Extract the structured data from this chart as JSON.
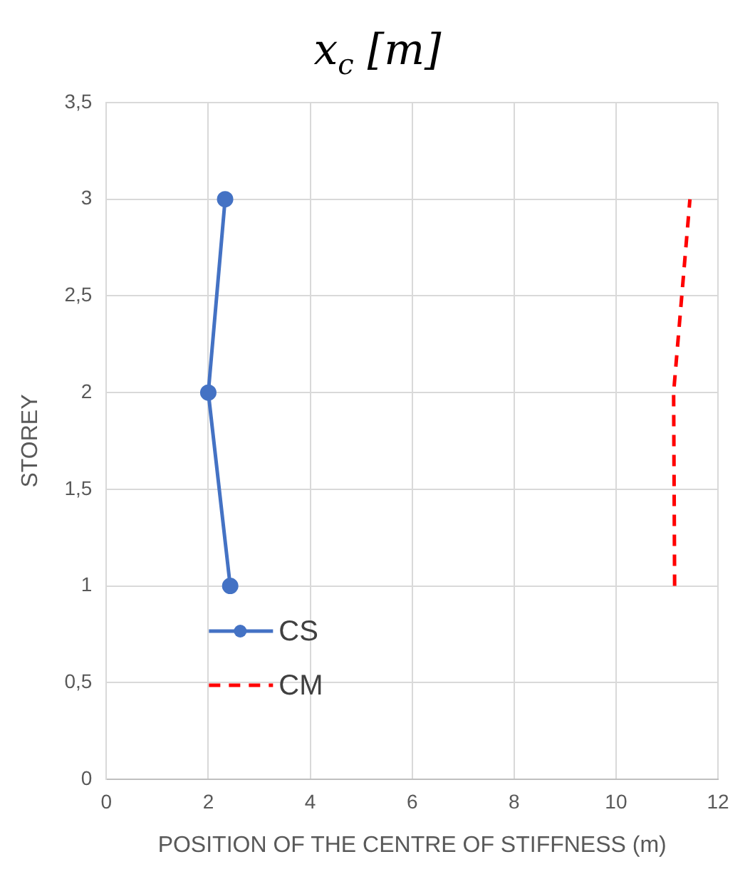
{
  "chart_data": {
    "type": "line",
    "title": "x$_{c}$ [m]",
    "xlabel": "POSITION OF THE CENTRE OF STIFFNESS (m)",
    "ylabel": "STOREY",
    "series": [
      {
        "name": "CS",
        "color": "#4472c4",
        "x": [
          2.43,
          2.0,
          2.33
        ],
        "values": [
          1,
          2,
          3
        ],
        "marker": "circle",
        "line_style": "solid"
      },
      {
        "name": "CM",
        "color": "#ff0000",
        "x": [
          11.15,
          11.13,
          11.45
        ],
        "values": [
          1,
          2,
          3
        ],
        "marker": "none",
        "line_style": "dashed"
      }
    ],
    "xlim": [
      0,
      12
    ],
    "xticks": [
      0,
      2,
      4,
      6,
      8,
      10,
      12
    ],
    "ylim": [
      0,
      3.5
    ],
    "yticks": [
      0,
      {
        "value": 0.5,
        "label": "0,5"
      },
      1,
      {
        "value": 1.5,
        "label": "1,5"
      },
      2,
      {
        "value": 2.5,
        "label": "2,5"
      },
      3,
      {
        "value": 3.5,
        "label": "3,5"
      }
    ],
    "grid": true,
    "legend": "bottom left"
  }
}
